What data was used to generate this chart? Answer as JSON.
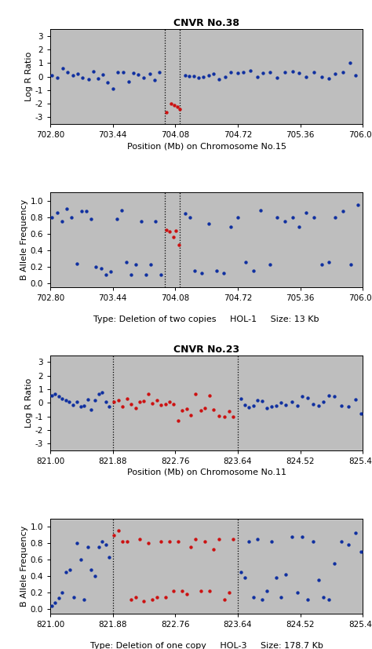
{
  "cnvr38": {
    "title": "CNVR No.38",
    "lrr_xlabel": "Position (Mb) on Chromosome No.15",
    "bottom_text": "Type: Deletion of two copies     HOL-1     Size: 13 Kb",
    "xlim": [
      702.8,
      706.0
    ],
    "xticks": [
      702.8,
      703.44,
      704.08,
      704.72,
      705.36,
      706.0
    ],
    "vlines": [
      703.97,
      704.13
    ],
    "lrr": {
      "ylim": [
        -3.5,
        3.5
      ],
      "yticks": [
        -3,
        -2,
        -1,
        0,
        1,
        2,
        3
      ],
      "ylabel": "Log R Ratio",
      "blue_x": [
        702.82,
        702.87,
        702.93,
        702.98,
        703.03,
        703.08,
        703.13,
        703.19,
        703.24,
        703.29,
        703.34,
        703.39,
        703.44,
        703.49,
        703.55,
        703.6,
        703.65,
        703.7,
        703.76,
        703.82,
        703.87,
        703.92,
        704.18,
        704.22,
        704.27,
        704.32,
        704.37,
        704.42,
        704.47,
        704.53,
        704.59,
        704.65,
        704.72,
        704.78,
        704.85,
        704.92,
        704.98,
        705.05,
        705.12,
        705.2,
        705.28,
        705.35,
        705.42,
        705.5,
        705.58,
        705.65,
        705.72,
        705.8,
        705.87,
        705.93
      ],
      "blue_y": [
        0.1,
        -0.1,
        0.6,
        0.3,
        0.1,
        0.2,
        -0.1,
        -0.2,
        0.4,
        -0.15,
        0.15,
        -0.4,
        -0.9,
        0.3,
        0.35,
        -0.35,
        0.25,
        0.15,
        -0.1,
        0.2,
        -0.25,
        0.3,
        0.1,
        0.05,
        0.05,
        -0.1,
        -0.05,
        0.1,
        0.2,
        -0.2,
        -0.05,
        0.3,
        0.25,
        0.35,
        0.45,
        -0.05,
        0.25,
        0.3,
        -0.1,
        0.35,
        0.4,
        0.25,
        -0.05,
        0.3,
        -0.05,
        -0.15,
        0.2,
        0.35,
        1.0,
        0.1
      ],
      "red_x": [
        703.99,
        704.04,
        704.07,
        704.1,
        704.13
      ],
      "red_y": [
        -2.6,
        -2.0,
        -2.1,
        -2.2,
        -2.4
      ]
    },
    "baf": {
      "ylim": [
        -0.05,
        1.1
      ],
      "yticks": [
        0.0,
        0.2,
        0.4,
        0.6,
        0.8,
        1.0
      ],
      "ylabel": "B Allele Frequency",
      "blue_x": [
        702.82,
        702.87,
        702.92,
        702.97,
        703.02,
        703.07,
        703.12,
        703.17,
        703.22,
        703.27,
        703.32,
        703.37,
        703.42,
        703.48,
        703.53,
        703.58,
        703.63,
        703.68,
        703.73,
        703.78,
        703.83,
        703.88,
        703.93,
        704.18,
        704.23,
        704.28,
        704.35,
        704.42,
        704.5,
        704.58,
        704.65,
        704.72,
        704.8,
        704.88,
        704.95,
        705.05,
        705.12,
        705.2,
        705.28,
        705.35,
        705.42,
        705.5,
        705.58,
        705.65,
        705.72,
        705.8,
        705.88,
        705.95
      ],
      "blue_y": [
        0.8,
        0.85,
        0.75,
        0.9,
        0.8,
        0.23,
        0.87,
        0.87,
        0.78,
        0.2,
        0.18,
        0.1,
        0.14,
        0.78,
        0.88,
        0.25,
        0.1,
        0.22,
        0.75,
        0.1,
        0.22,
        0.75,
        0.1,
        0.84,
        0.8,
        0.15,
        0.12,
        0.72,
        0.15,
        0.12,
        0.68,
        0.8,
        0.25,
        0.15,
        0.88,
        0.22,
        0.8,
        0.75,
        0.8,
        0.68,
        0.85,
        0.8,
        0.22,
        0.25,
        0.8,
        0.87,
        0.22,
        0.95
      ],
      "red_x": [
        703.99,
        704.02,
        704.06,
        704.09,
        704.12
      ],
      "red_y": [
        0.64,
        0.62,
        0.56,
        0.63,
        0.46
      ]
    }
  },
  "cnvr23": {
    "title": "CNVR No.23",
    "lrr_xlabel": "Position (Mb) on Chromosome No.11",
    "bottom_text": "Type: Deletion of one copy     HOL-3     Size: 178.7 Kb",
    "xlim": [
      821.0,
      825.4
    ],
    "xticks": [
      821.0,
      821.88,
      822.76,
      823.64,
      824.52,
      825.4
    ],
    "vlines": [
      821.88,
      823.64
    ],
    "lrr": {
      "ylim": [
        -3.5,
        3.5
      ],
      "yticks": [
        -3,
        -2,
        -1,
        0,
        1,
        2,
        3
      ],
      "ylabel": "Log R Ratio",
      "blue_x": [
        821.02,
        821.07,
        821.12,
        821.17,
        821.22,
        821.27,
        821.32,
        821.38,
        821.43,
        821.48,
        821.53,
        821.58,
        821.63,
        821.68,
        821.73,
        821.78,
        821.83,
        823.68,
        823.74,
        823.8,
        823.86,
        823.92,
        823.98,
        824.05,
        824.12,
        824.18,
        824.25,
        824.32,
        824.4,
        824.48,
        824.55,
        824.62,
        824.7,
        824.78,
        824.85,
        824.92,
        825.0,
        825.1,
        825.2,
        825.3,
        825.38
      ],
      "blue_y": [
        0.55,
        0.65,
        0.5,
        0.3,
        0.2,
        0.1,
        -0.15,
        0.05,
        -0.3,
        -0.2,
        0.25,
        -0.5,
        0.2,
        0.65,
        0.75,
        0.1,
        -0.3,
        0.3,
        -0.15,
        -0.35,
        -0.2,
        0.2,
        0.15,
        -0.4,
        -0.3,
        -0.2,
        0.0,
        -0.15,
        0.1,
        -0.2,
        0.5,
        0.35,
        -0.1,
        -0.2,
        0.1,
        0.55,
        0.5,
        -0.2,
        -0.3,
        0.25,
        -0.8
      ],
      "red_x": [
        821.9,
        821.96,
        822.02,
        822.08,
        822.14,
        822.2,
        822.26,
        822.32,
        822.38,
        822.44,
        822.5,
        822.56,
        822.62,
        822.68,
        822.74,
        822.8,
        822.86,
        822.92,
        822.98,
        823.05,
        823.12,
        823.18,
        823.24,
        823.3,
        823.38,
        823.45,
        823.52,
        823.58
      ],
      "red_y": [
        0.1,
        0.2,
        -0.3,
        0.3,
        -0.1,
        -0.4,
        0.05,
        0.15,
        0.65,
        -0.05,
        0.2,
        -0.15,
        -0.1,
        0.05,
        -0.1,
        -1.3,
        -0.55,
        -0.45,
        -0.9,
        0.65,
        -0.55,
        -0.4,
        0.55,
        -0.5,
        -0.95,
        -1.0,
        -0.65,
        -1.0
      ]
    },
    "baf": {
      "ylim": [
        -0.05,
        1.1
      ],
      "yticks": [
        0.0,
        0.2,
        0.4,
        0.6,
        0.8,
        1.0
      ],
      "ylabel": "B Allele Frequency",
      "blue_x": [
        821.02,
        821.07,
        821.12,
        821.17,
        821.22,
        821.28,
        821.33,
        821.38,
        821.43,
        821.48,
        821.53,
        821.58,
        821.63,
        821.68,
        821.73,
        821.78,
        821.83,
        823.68,
        823.74,
        823.8,
        823.86,
        823.92,
        823.98,
        824.05,
        824.12,
        824.18,
        824.25,
        824.32,
        824.4,
        824.48,
        824.55,
        824.62,
        824.7,
        824.78,
        824.85,
        824.92,
        825.0,
        825.1,
        825.2,
        825.3,
        825.38
      ],
      "blue_y": [
        0.04,
        0.08,
        0.14,
        0.2,
        0.45,
        0.48,
        0.15,
        0.8,
        0.6,
        0.12,
        0.75,
        0.48,
        0.4,
        0.75,
        0.82,
        0.78,
        0.63,
        0.45,
        0.38,
        0.82,
        0.15,
        0.85,
        0.12,
        0.22,
        0.82,
        0.38,
        0.15,
        0.42,
        0.88,
        0.2,
        0.88,
        0.12,
        0.82,
        0.35,
        0.15,
        0.12,
        0.55,
        0.82,
        0.78,
        0.93,
        0.7
      ],
      "red_x": [
        821.9,
        821.96,
        822.02,
        822.08,
        822.14,
        822.2,
        822.26,
        822.32,
        822.38,
        822.44,
        822.5,
        822.56,
        822.62,
        822.68,
        822.74,
        822.8,
        822.86,
        822.92,
        822.98,
        823.05,
        823.12,
        823.18,
        823.24,
        823.3,
        823.38,
        823.45,
        823.52,
        823.58
      ],
      "red_y": [
        0.9,
        0.95,
        0.82,
        0.82,
        0.12,
        0.15,
        0.85,
        0.1,
        0.8,
        0.12,
        0.15,
        0.82,
        0.15,
        0.82,
        0.22,
        0.82,
        0.22,
        0.18,
        0.75,
        0.85,
        0.22,
        0.82,
        0.22,
        0.73,
        0.85,
        0.12,
        0.2,
        0.85
      ]
    }
  },
  "bg_color": "#bebebe",
  "blue_color": "#1030a0",
  "red_color": "#cc1111",
  "dot_size": 10,
  "title_fontsize": 9,
  "label_fontsize": 8,
  "tick_fontsize": 7.5
}
